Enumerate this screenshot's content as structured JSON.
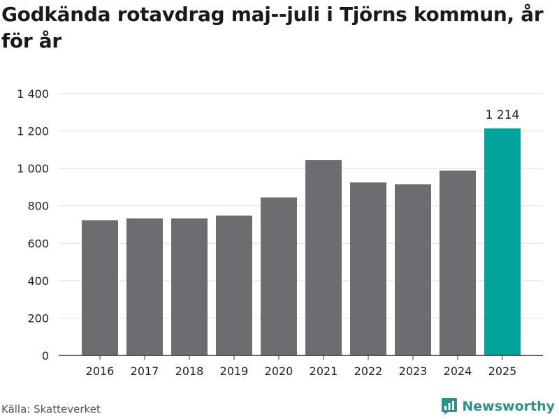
{
  "title": "Godkända rotavdrag maj--juli i Tjörns kommun, år för år",
  "source": "Källa: Skatteverket",
  "brand": {
    "name": "Newsworthy",
    "icon": "newsworthy-logo-icon",
    "color": "#2f8f8a"
  },
  "colors": {
    "bar": "#6d6c71",
    "highlight": "#00a399",
    "grid": "#dddddd",
    "axis": "#333333",
    "text": "#222222"
  },
  "chart_data": {
    "type": "bar",
    "title": "Godkända rotavdrag maj--juli i Tjörns kommun, år för år",
    "xlabel": "",
    "ylabel": "",
    "categories": [
      "2016",
      "2017",
      "2018",
      "2019",
      "2020",
      "2021",
      "2022",
      "2023",
      "2024",
      "2025"
    ],
    "values": [
      723,
      733,
      733,
      748,
      845,
      1045,
      925,
      915,
      988,
      1214
    ],
    "highlight_index": 9,
    "data_labels": [
      {
        "index": 9,
        "text": "1 214"
      }
    ],
    "ylim": [
      0,
      1400
    ],
    "yticks": [
      0,
      200,
      400,
      600,
      800,
      1000,
      1200,
      1400
    ],
    "ytick_labels": [
      "0",
      "200",
      "400",
      "600",
      "800",
      "1 000",
      "1 200",
      "1 400"
    ],
    "grid": true,
    "legend": "none"
  }
}
